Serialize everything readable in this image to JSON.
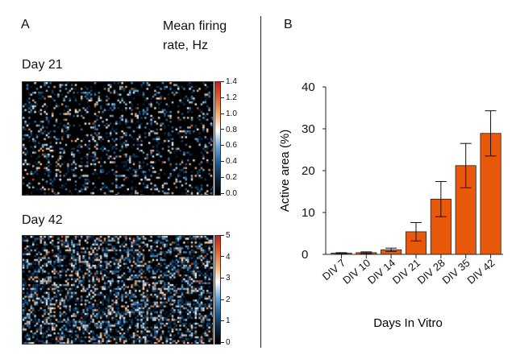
{
  "panel_a": {
    "letter": "A",
    "legend_title_line1": "Mean firing",
    "legend_title_line2": "rate, Hz",
    "maps": [
      {
        "label": "Day 21",
        "colorbar_ticks": [
          "1.4",
          "1.2",
          "1.0",
          "0.8",
          "0.6",
          "0.4",
          "0.2",
          "0.0"
        ],
        "colorbar_range": [
          0,
          1.4
        ]
      },
      {
        "label": "Day 42",
        "colorbar_ticks": [
          "5",
          "4",
          "3",
          "2",
          "1",
          "0"
        ],
        "colorbar_range": [
          0,
          5
        ]
      }
    ],
    "colormap": [
      "#000000",
      "#0b2740",
      "#1f5f96",
      "#6aa8dc",
      "#ffffff",
      "#f4b07a",
      "#e0662a",
      "#cc1f1f"
    ]
  },
  "chart_data": {
    "type": "bar",
    "panel_letter": "B",
    "categories": [
      "DIV 7",
      "DIV 10",
      "DIV 14",
      "DIV 21",
      "DIV 28",
      "DIV 35",
      "DIV 42"
    ],
    "values": [
      0.3,
      0.4,
      1.1,
      5.4,
      13.2,
      21.2,
      28.9
    ],
    "errors": [
      0.1,
      0.2,
      0.4,
      2.2,
      4.2,
      5.3,
      5.4
    ],
    "xlabel": "Days In Vitro",
    "ylabel": "Active area (%)",
    "ylim": [
      0,
      40
    ],
    "yticks": [
      "0",
      "10",
      "20",
      "30",
      "40"
    ],
    "bar_color": "#e8590c",
    "grid": false
  }
}
